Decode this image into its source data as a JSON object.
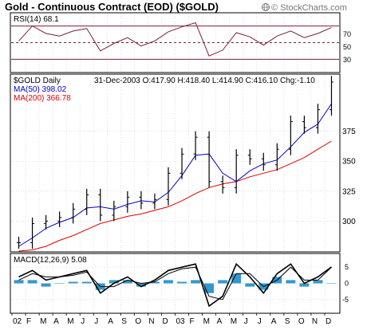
{
  "header": {
    "title": "Gold - Continuous Contract (EOD) ($GOLD)",
    "copyright": "© StockCharts.com",
    "copyright_icon": "globe-icon"
  },
  "rsi_panel": {
    "label": "RSI(14) 68.1",
    "ticks": [
      "70",
      "50",
      "30"
    ],
    "ylim": [
      15,
      85
    ],
    "levels": {
      "upper": 70,
      "middle": 50,
      "lower": 30
    },
    "line_color": "#7a1f3c"
  },
  "price_panel": {
    "symbol_label": "$GOLD Daily",
    "ohlc_label": "31-Dec-2003 O:417.90 H:418.40 L:414.90 C:416.10 Chg:-1.10",
    "ma50_label": "MA(50) 398.02",
    "ma200_label": "MA(200) 366.78",
    "ticks": [
      "375",
      "350",
      "325",
      "300"
    ],
    "ylim": [
      275,
      422
    ],
    "bar_color": "#000000",
    "ma50_color": "#0000cc",
    "ma200_color": "#dd0000"
  },
  "macd_panel": {
    "label": "MACD(12,26,9) 5.08",
    "ticks": [
      "5",
      "0",
      "-5"
    ],
    "ylim": [
      -9,
      9
    ],
    "macd_color": "#000000",
    "signal_color": "#000000",
    "histogram_color": "#3399cc"
  },
  "x_axis": {
    "labels": [
      "02",
      "F",
      "M",
      "A",
      "M",
      "J",
      "J",
      "A",
      "S",
      "O",
      "N",
      "D",
      "03",
      "F",
      "M",
      "A",
      "M",
      "J",
      "J",
      "A",
      "S",
      "O",
      "N",
      "D"
    ]
  },
  "chart_data": [
    {
      "type": "line",
      "title": "RSI(14) 68.1",
      "x": [
        "2002-01",
        "2002-02",
        "2002-03",
        "2002-04",
        "2002-05",
        "2002-06",
        "2002-07",
        "2002-08",
        "2002-09",
        "2002-10",
        "2002-11",
        "2002-12",
        "2003-01",
        "2003-02",
        "2003-03",
        "2003-04",
        "2003-05",
        "2003-06",
        "2003-07",
        "2003-08",
        "2003-09",
        "2003-10",
        "2003-11",
        "2003-12"
      ],
      "series": [
        {
          "name": "RSI(14)",
          "values": [
            52,
            70,
            61,
            58,
            64,
            67,
            40,
            49,
            56,
            46,
            52,
            63,
            69,
            74,
            34,
            41,
            62,
            57,
            47,
            58,
            64,
            56,
            61,
            68.1
          ]
        }
      ],
      "ylim": [
        15,
        85
      ],
      "reference_lines": [
        70,
        50,
        30
      ]
    },
    {
      "type": "line",
      "title": "Gold - Continuous Contract (EOD) ($GOLD)",
      "x": [
        "2002-01",
        "2002-02",
        "2002-03",
        "2002-04",
        "2002-05",
        "2002-06",
        "2002-07",
        "2002-08",
        "2002-09",
        "2002-10",
        "2002-11",
        "2002-12",
        "2003-01",
        "2003-02",
        "2003-03",
        "2003-04",
        "2003-05",
        "2003-06",
        "2003-07",
        "2003-08",
        "2003-09",
        "2003-10",
        "2003-11",
        "2003-12"
      ],
      "series": [
        {
          "name": "$GOLD Daily",
          "values": [
            282,
            298,
            300,
            303,
            310,
            322,
            305,
            312,
            320,
            315,
            318,
            340,
            356,
            370,
            333,
            328,
            355,
            352,
            347,
            360,
            383,
            378,
            393,
            416.1
          ]
        },
        {
          "name": "MA(50)",
          "values": [
            279,
            286,
            294,
            299,
            303,
            311,
            312,
            310,
            314,
            317,
            316,
            324,
            338,
            355,
            356,
            340,
            333,
            342,
            348,
            351,
            362,
            374,
            381,
            398.02
          ]
        },
        {
          "name": "MA(200)",
          "values": [
            275,
            276,
            279,
            284,
            288,
            293,
            298,
            301,
            304,
            306,
            309,
            312,
            317,
            323,
            328,
            331,
            333,
            337,
            340,
            343,
            348,
            353,
            360,
            366.78
          ]
        }
      ],
      "last_bar": {
        "date": "31-Dec-2003",
        "open": 417.9,
        "high": 418.4,
        "low": 414.9,
        "close": 416.1,
        "change": -1.1
      },
      "ylim": [
        275,
        422
      ]
    },
    {
      "type": "line",
      "title": "MACD(12,26,9) 5.08",
      "x": [
        "2002-01",
        "2002-02",
        "2002-03",
        "2002-04",
        "2002-05",
        "2002-06",
        "2002-07",
        "2002-08",
        "2002-09",
        "2002-10",
        "2002-11",
        "2002-12",
        "2003-01",
        "2003-02",
        "2003-03",
        "2003-04",
        "2003-05",
        "2003-06",
        "2003-07",
        "2003-08",
        "2003-09",
        "2003-10",
        "2003-11",
        "2003-12"
      ],
      "series": [
        {
          "name": "MACD",
          "values": [
            2,
            4,
            1,
            2,
            3,
            4,
            -3,
            0,
            2,
            -1,
            1,
            4,
            5,
            6,
            -7,
            -4,
            6,
            2,
            -3,
            3,
            6,
            0,
            2,
            5.08
          ]
        },
        {
          "name": "Signal",
          "values": [
            1,
            3,
            2,
            2,
            2.5,
            3.5,
            -1,
            -1,
            1,
            0,
            0.5,
            3,
            4.5,
            5,
            -4,
            -5,
            3,
            3,
            -1,
            1,
            5,
            1,
            1,
            5
          ]
        },
        {
          "name": "Histogram",
          "values": [
            1,
            1,
            -1,
            0,
            0.5,
            0.5,
            -2,
            1,
            1,
            -1,
            0.5,
            1,
            0.5,
            1,
            -3,
            1,
            3,
            -1,
            -2,
            2,
            1,
            -1,
            1,
            0.08
          ]
        }
      ],
      "ylim": [
        -9,
        9
      ],
      "reference_lines": [
        0
      ]
    }
  ]
}
